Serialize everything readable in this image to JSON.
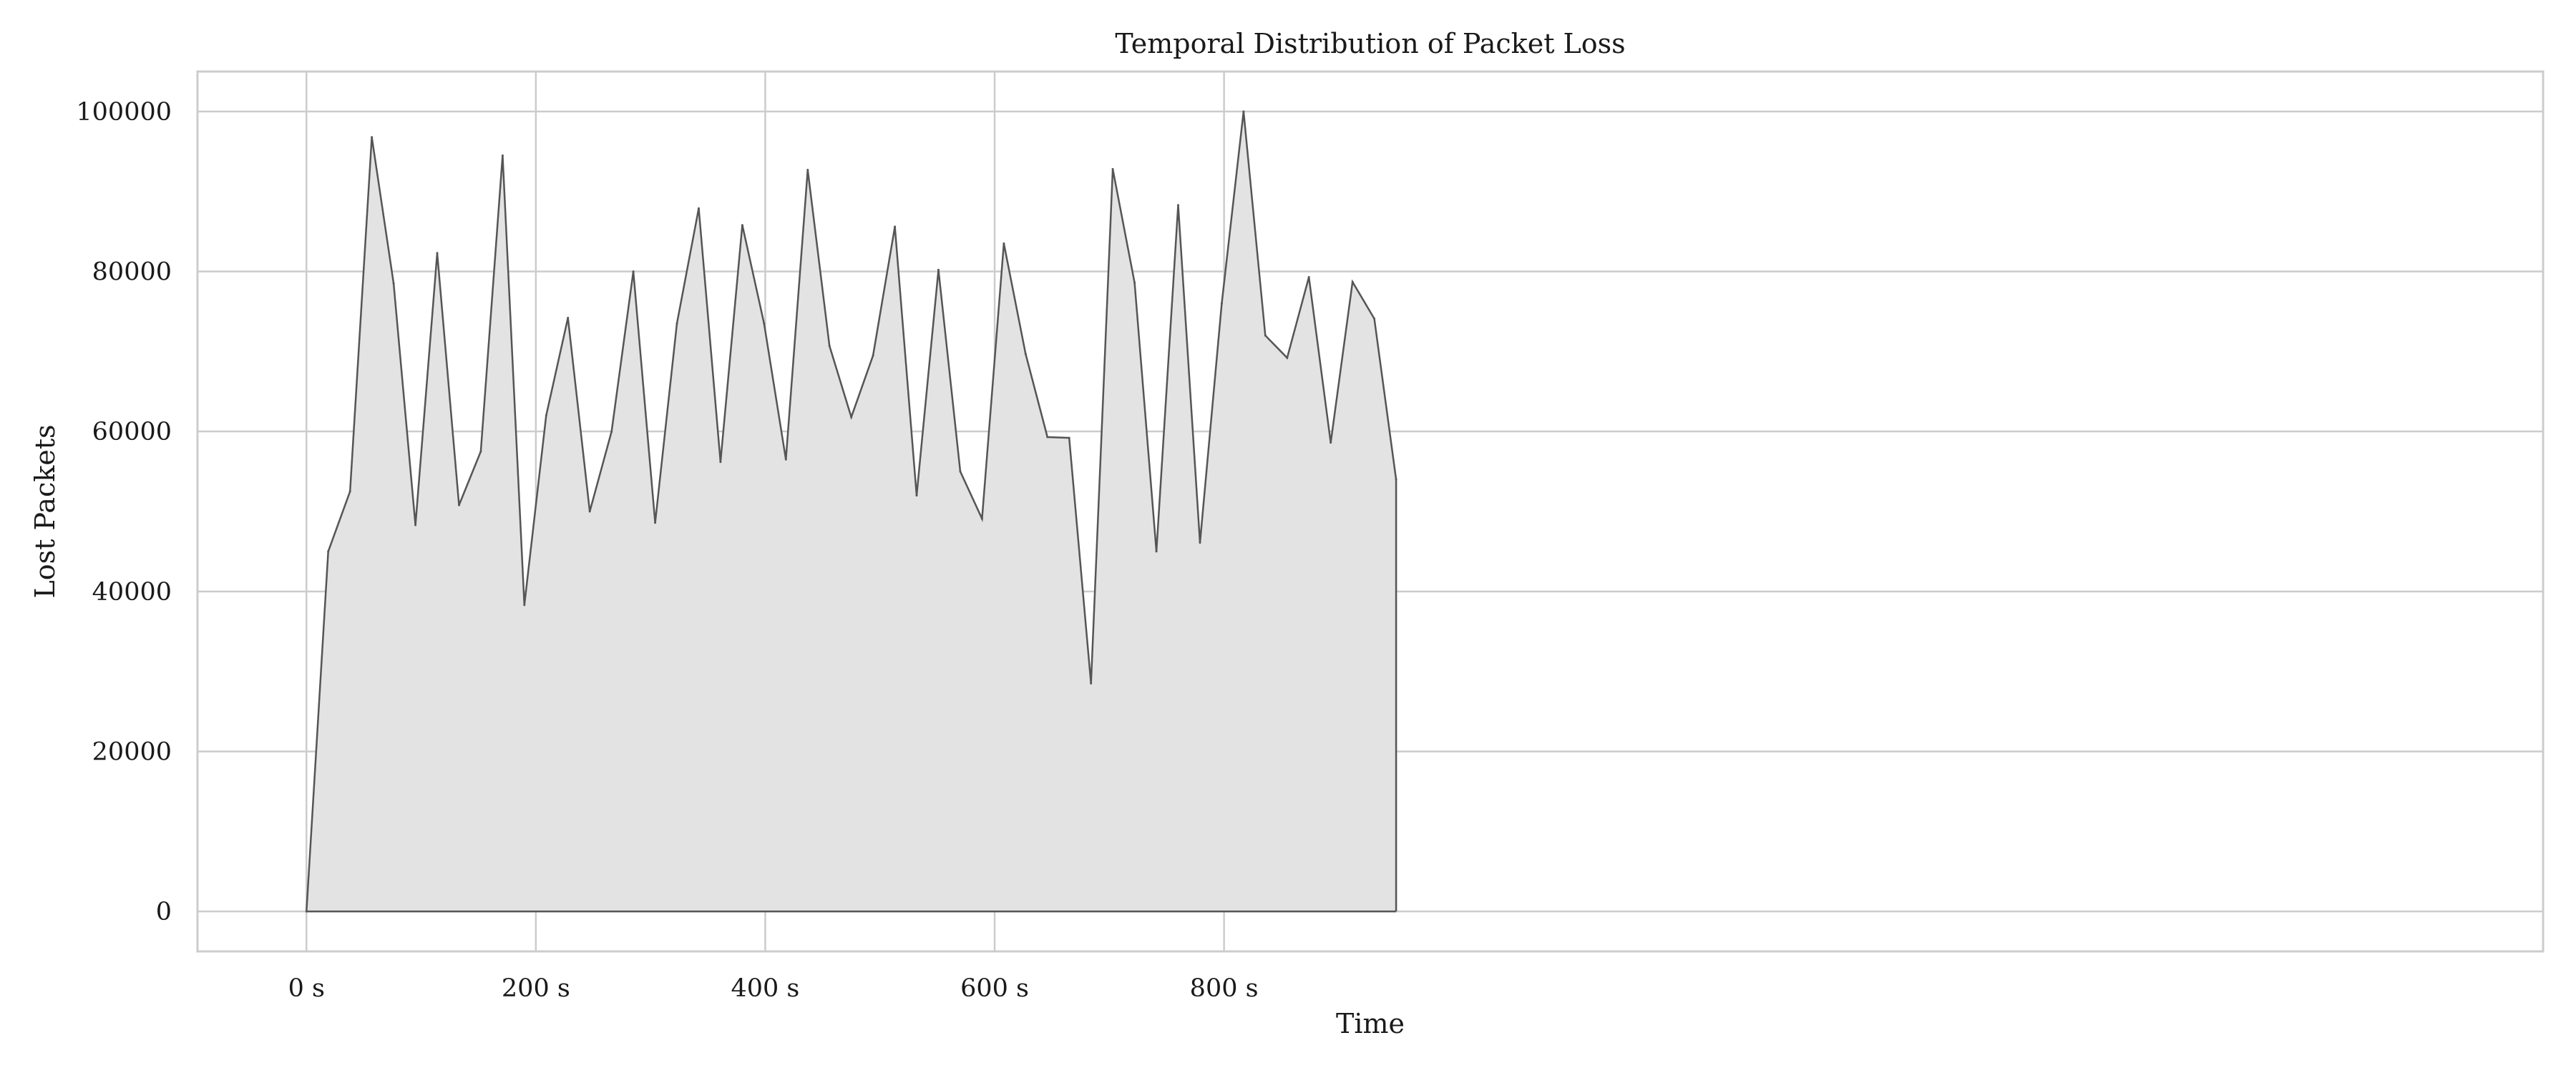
{
  "chart_data": {
    "type": "area",
    "title": "Temporal Distribution of Packet Loss",
    "xlabel": "Time",
    "ylabel": "Lost Packets",
    "xlim": [
      -95,
      1950
    ],
    "ylim": [
      -5000,
      105000
    ],
    "x_ticks": [
      0,
      200,
      400,
      600,
      800
    ],
    "x_tick_labels": [
      "0 s",
      "200 s",
      "400 s",
      "600 s",
      "800 s"
    ],
    "y_ticks": [
      0,
      20000,
      40000,
      60000,
      80000,
      100000
    ],
    "y_tick_labels": [
      "0",
      "20000",
      "40000",
      "60000",
      "80000",
      "100000"
    ],
    "grid": true,
    "line_color": "#555555",
    "fill_color": "#e3e3e3",
    "series": [
      {
        "x": [
          0,
          19,
          38,
          57,
          76,
          95,
          114,
          133,
          152,
          171,
          190,
          209,
          228,
          247,
          266,
          285,
          304,
          323,
          342,
          361,
          380,
          399,
          418,
          437,
          456,
          475,
          494,
          513,
          532,
          551,
          570,
          589,
          608,
          627,
          646,
          665,
          684,
          703,
          722,
          741,
          760,
          779,
          798,
          817,
          836,
          855,
          874,
          893,
          912,
          931,
          950
        ],
        "values": [
          0,
          45000,
          52500,
          96800,
          78500,
          48300,
          82300,
          50800,
          57500,
          94500,
          38300,
          62000,
          74200,
          50000,
          60000,
          80000,
          48600,
          73500,
          87900,
          56200,
          85800,
          73500,
          56500,
          92700,
          70700,
          61800,
          69500,
          85600,
          52000,
          80200,
          55000,
          49100,
          83500,
          69700,
          59300,
          59200,
          28500,
          92800,
          78600,
          45000,
          88300,
          46100,
          76000,
          100000,
          72000,
          69200,
          79300,
          58600,
          78700,
          74100,
          54000
        ]
      }
    ]
  }
}
